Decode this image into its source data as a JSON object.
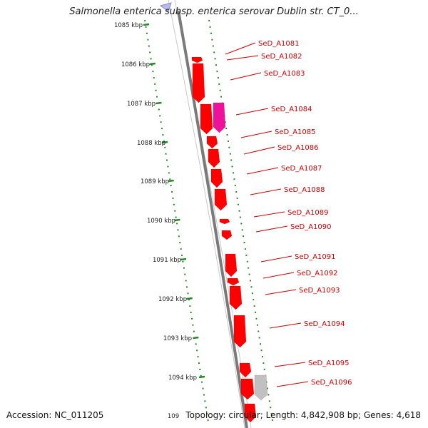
{
  "title": "Salmonella enterica subsp. enterica serovar Dublin str. CT_0...",
  "accession": "Accession: NC_011205",
  "summary": "Topology: circular; Length: 4,842,908 bp; Genes: 4,618",
  "kbp_labels": [
    "1085 kbp",
    "1086 kbp",
    "1087 kbp",
    "1088 kbp",
    "1089 kbp",
    "1090 kbp",
    "1091 kbp",
    "1092 kbp",
    "1093 kbp",
    "1094 kbp",
    "109"
  ],
  "gene_labels": [
    "SeD_A1081",
    "SeD_A1082",
    "SeD_A1083",
    "SeD_A1084",
    "SeD_A1085",
    "SeD_A1086",
    "SeD_A1087",
    "SeD_A1088",
    "SeD_A1089",
    "SeD_A1090",
    "SeD_A1091",
    "SeD_A1092",
    "SeD_A1093",
    "SeD_A1094",
    "SeD_A1095",
    "SeD_A1096"
  ],
  "colors": {
    "gene": "#ff0000",
    "gene_highlight": "#ee1199",
    "gene_other": "#c0c0c0",
    "backbone": "#7a7a7a",
    "ticks": "#228b22",
    "label": "#cc0000"
  }
}
